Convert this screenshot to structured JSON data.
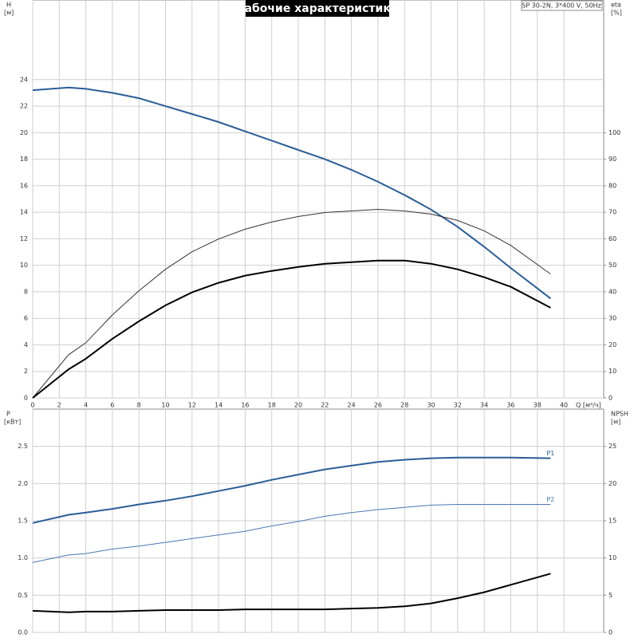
{
  "chart_data": [
    {
      "type": "line",
      "title": "Рабочие характеристики",
      "subtitle": "SP 30-2N, 3*400 V, 50Hz",
      "xlabel": "Q [м³/ч]",
      "ylabel": "H",
      "yunit": "[м]",
      "y2label": "eta",
      "y2unit": "[%]",
      "xlim": [
        0,
        43
      ],
      "xticks": [
        0,
        2,
        4,
        6,
        8,
        10,
        12,
        14,
        16,
        18,
        20,
        22,
        24,
        26,
        28,
        30,
        32,
        34,
        36,
        38,
        40
      ],
      "ylim": [
        0,
        30
      ],
      "yticks": [
        0,
        2,
        4,
        6,
        8,
        10,
        12,
        14,
        16,
        18,
        20,
        22,
        24
      ],
      "y2lim": [
        0,
        150
      ],
      "y2ticks": [
        0,
        10,
        20,
        30,
        40,
        50,
        60,
        70,
        80,
        90,
        100
      ],
      "grid": true,
      "x": [
        0,
        2.7,
        4,
        6,
        8,
        10,
        12,
        14,
        16,
        18,
        20,
        22,
        24,
        26,
        28,
        30,
        32,
        34,
        36,
        39
      ],
      "series": [
        {
          "color": "#2a5d97",
          "line_width": 2,
          "values": [
            23.2,
            23.4,
            23.3,
            23.0,
            22.6,
            22.0,
            21.4,
            20.8,
            20.1,
            19.4,
            18.7,
            18.0,
            17.2,
            16.3,
            15.3,
            14.2,
            12.9,
            11.4,
            9.8,
            7.5
          ]
        },
        {
          "color": "#333333",
          "line_width": 1,
          "axis": "y2",
          "values": [
            0,
            16.3,
            20.8,
            31.3,
            40.4,
            48.5,
            55.1,
            59.9,
            63.6,
            66.3,
            68.4,
            69.9,
            70.5,
            71.1,
            70.5,
            69.3,
            66.9,
            63,
            57.5,
            46.7
          ]
        },
        {
          "color": "#000000",
          "line_width": 2,
          "axis": "y2",
          "values": [
            0,
            10.8,
            14.8,
            22.3,
            28.9,
            34.9,
            39.8,
            43.4,
            46.1,
            47.9,
            49.4,
            50.6,
            51.2,
            51.8,
            51.8,
            50.6,
            48.5,
            45.5,
            41.9,
            34
          ]
        }
      ]
    },
    {
      "type": "line",
      "ylabel": "P",
      "yunit": "[кВт]",
      "y2label": "NPSH",
      "y2unit": "[м]",
      "xlim": [
        0,
        43
      ],
      "ylim": [
        0,
        3
      ],
      "yticks": [
        {
          "value": 0,
          "label": "0.0"
        },
        0.5,
        {
          "value": 1,
          "label": "1.0"
        },
        1.5,
        {
          "value": 2,
          "label": "2.0"
        },
        2.5
      ],
      "y2lim": [
        0,
        30
      ],
      "y2ticks": [
        0,
        5,
        10,
        15,
        20,
        25
      ],
      "grid": true,
      "x": [
        0,
        2.7,
        4,
        6,
        8,
        10,
        12,
        14,
        16,
        18,
        20,
        22,
        24,
        26,
        28,
        30,
        32,
        34,
        36,
        39
      ],
      "series": [
        {
          "name": "P1",
          "color": "#2a5d97",
          "line_width": 2,
          "values": [
            1.47,
            1.58,
            1.61,
            1.66,
            1.72,
            1.77,
            1.83,
            1.9,
            1.97,
            2.05,
            2.12,
            2.19,
            2.24,
            2.29,
            2.32,
            2.34,
            2.35,
            2.35,
            2.35,
            2.34
          ]
        },
        {
          "name": "P2",
          "color": "#4a78b0",
          "line_width": 1,
          "values": [
            0.94,
            1.04,
            1.06,
            1.12,
            1.16,
            1.21,
            1.26,
            1.31,
            1.36,
            1.43,
            1.49,
            1.56,
            1.61,
            1.65,
            1.68,
            1.71,
            1.72,
            1.72,
            1.72,
            1.72
          ]
        },
        {
          "color": "#000000",
          "line_width": 2,
          "axis": "y2",
          "values": [
            2.9,
            2.7,
            2.8,
            2.8,
            2.9,
            3.0,
            3.0,
            3.0,
            3.1,
            3.1,
            3.1,
            3.1,
            3.2,
            3.3,
            3.5,
            3.9,
            4.6,
            5.4,
            6.4,
            7.9
          ]
        }
      ]
    }
  ]
}
